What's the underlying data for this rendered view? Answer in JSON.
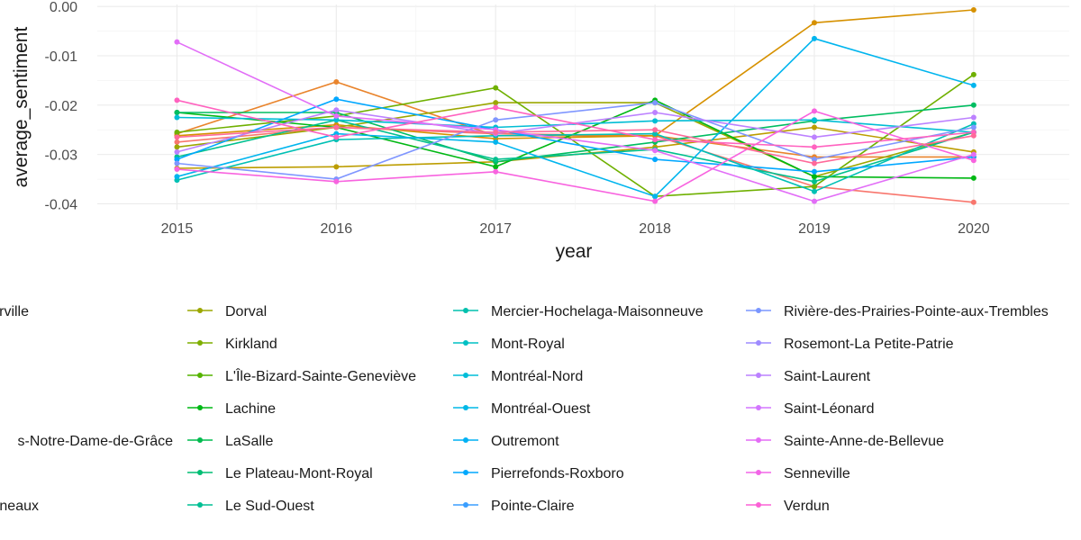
{
  "chart_data": {
    "type": "line",
    "xlabel": "year",
    "ylabel": "average_sentiment",
    "x": [
      2015,
      2016,
      2017,
      2018,
      2019,
      2020
    ],
    "x_ticks": [
      "2015",
      "2016",
      "2017",
      "2018",
      "2019",
      "2020"
    ],
    "xlim": [
      2014.5,
      2020.6
    ],
    "y_ticks": [
      "0.00",
      "-0.01",
      "-0.02",
      "-0.03",
      "-0.04"
    ],
    "y_tick_values": [
      0,
      -0.01,
      -0.02,
      -0.03,
      -0.04
    ],
    "ylim": [
      -0.0412,
      0.0004
    ],
    "grid": true,
    "legend_position": "bottom",
    "series": [
      {
        "color": "#F8766D",
        "values": [
          -0.0275,
          -0.0245,
          -0.0258,
          -0.0262,
          -0.0365,
          -0.0397
        ]
      },
      {
        "color": "#E9842C",
        "values": [
          -0.0258,
          -0.0153,
          -0.0262,
          -0.0262,
          -0.0305,
          -0.0305
        ]
      },
      {
        "color": "#D69100",
        "values": [
          -0.0262,
          -0.024,
          -0.0268,
          -0.0262,
          -0.0033,
          -0.0007
        ]
      },
      {
        "color": "#BC9D00",
        "values": [
          -0.0328,
          -0.0325,
          -0.0315,
          -0.0285,
          -0.0245,
          -0.0295
        ]
      },
      {
        "color": "#9CA700",
        "name": "Dorval",
        "values": [
          -0.0285,
          -0.0245,
          -0.0195,
          -0.0195,
          -0.0345,
          -0.0255
        ]
      },
      {
        "color": "#6FB000",
        "name": "Kirkland",
        "values": [
          -0.0255,
          -0.0222,
          -0.0165,
          -0.0385,
          -0.0365,
          -0.0138
        ]
      },
      {
        "color": "#00B813",
        "name": "L'Île-Bizard-Sainte-Geneviève",
        "values": [
          -0.0215,
          -0.0245,
          -0.0325,
          -0.019,
          -0.0345,
          -0.0348
        ]
      },
      {
        "color": "#00BD61",
        "name": "Lachine",
        "values": [
          -0.0215,
          -0.0215,
          -0.0315,
          -0.0275,
          -0.0232,
          -0.02
        ]
      },
      {
        "color": "#00C08E",
        "name": "LaSalle",
        "values": [
          -0.0305,
          -0.023,
          -0.031,
          -0.029,
          -0.0355,
          -0.0255
        ]
      },
      {
        "color": "#00C0B4",
        "name": "Le Plateau-Mont-Royal",
        "values": [
          -0.0352,
          -0.027,
          -0.0262,
          -0.0258,
          -0.0375,
          -0.0238
        ]
      },
      {
        "color": "#00BDD4",
        "name": "Le Sud-Ouest",
        "values": [
          -0.0225,
          -0.023,
          -0.0245,
          -0.0232,
          -0.023,
          -0.0255
        ]
      },
      {
        "color": "#00B5EE",
        "name": "Mercier-Hochelaga-Maisonneuve",
        "values": [
          -0.0345,
          -0.0258,
          -0.0275,
          -0.0385,
          -0.0065,
          -0.016
        ]
      },
      {
        "color": "#00A7FF",
        "name": "Mont-Royal",
        "values": [
          -0.031,
          -0.0188,
          -0.025,
          -0.031,
          -0.0335,
          -0.0305
        ]
      },
      {
        "color": "#7F96FF",
        "name": "Montréal-Nord",
        "values": [
          -0.0318,
          -0.035,
          -0.023,
          -0.0195,
          -0.031,
          -0.0245
        ]
      },
      {
        "color": "#BC81FF",
        "name": "Montréal-Ouest",
        "values": [
          -0.0295,
          -0.021,
          -0.0258,
          -0.0215,
          -0.0265,
          -0.0225
        ]
      },
      {
        "color": "#E26EF7",
        "name": "Outremont",
        "values": [
          -0.0072,
          -0.0222,
          -0.025,
          -0.0292,
          -0.0395,
          -0.03
        ]
      },
      {
        "color": "#F863DF",
        "name": "Pierrefonds-Roxboro",
        "values": [
          -0.033,
          -0.0355,
          -0.0335,
          -0.0395,
          -0.0212,
          -0.0312
        ]
      },
      {
        "color": "#FF62BF",
        "name": "Pointe-Claire",
        "values": [
          -0.019,
          -0.0265,
          -0.0205,
          -0.027,
          -0.0285,
          -0.0255
        ]
      },
      {
        "color": "#FF6A9A",
        "name": "Rivière-des-Prairies-Pointe-aux-Trembles",
        "values": [
          -0.0265,
          -0.0245,
          -0.0255,
          -0.025,
          -0.0318,
          -0.0262
        ]
      }
    ],
    "legend_columns": [
      [
        "rville",
        "",
        "",
        "",
        "s-Notre-Dame-de-Grâce",
        "",
        "neaux"
      ],
      [
        "Dorval",
        "Kirkland",
        "L'Île-Bizard-Sainte-Geneviève",
        "Lachine",
        "LaSalle",
        "Le Plateau-Mont-Royal",
        "Le Sud-Ouest"
      ],
      [
        "Mercier-Hochelaga-Maisonneuve",
        "Mont-Royal",
        "Montréal-Nord",
        "Montréal-Ouest",
        "Outremont",
        "Pierrefonds-Roxboro",
        "Pointe-Claire"
      ],
      [
        "Rivière-des-Prairies-Pointe-aux-Trembles",
        "Rosemont-La Petite-Patrie",
        "Saint-Laurent",
        "Saint-Léonard",
        "Sainte-Anne-de-Bellevue",
        "Senneville",
        "Verdun"
      ]
    ],
    "legend_colors": [
      [
        "#F8766D",
        "#EF7F48",
        "#E38900",
        "#D49200",
        "#C39A00",
        "#B0A100",
        "#9CA700"
      ],
      [
        "#9CA700",
        "#7EAE00",
        "#55B300",
        "#00B815",
        "#00BB4E",
        "#00BD73",
        "#00BF93"
      ],
      [
        "#00C0AD",
        "#00C0C4",
        "#00BDD8",
        "#00B8E7",
        "#00B1F4",
        "#00A9FE",
        "#3A9EFF"
      ],
      [
        "#7A96FF",
        "#9E8BFF",
        "#BB81FF",
        "#D376FF",
        "#E46CF6",
        "#F265E7",
        "#FB61D6"
      ]
    ]
  }
}
